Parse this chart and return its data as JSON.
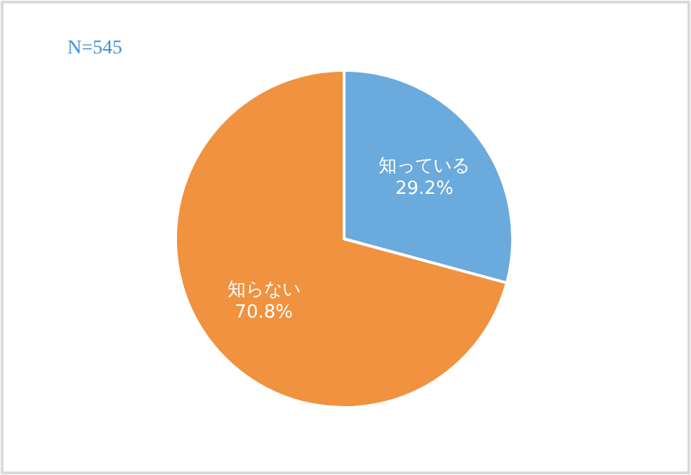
{
  "chart_data": {
    "type": "pie",
    "annotations": [
      "N=545"
    ],
    "categories": [
      "知っている",
      "知らない"
    ],
    "values": [
      29.2,
      70.8
    ],
    "colors": [
      "#6aaadc",
      "#f0923f"
    ],
    "value_labels": [
      "29.2%",
      "70.8%"
    ]
  }
}
